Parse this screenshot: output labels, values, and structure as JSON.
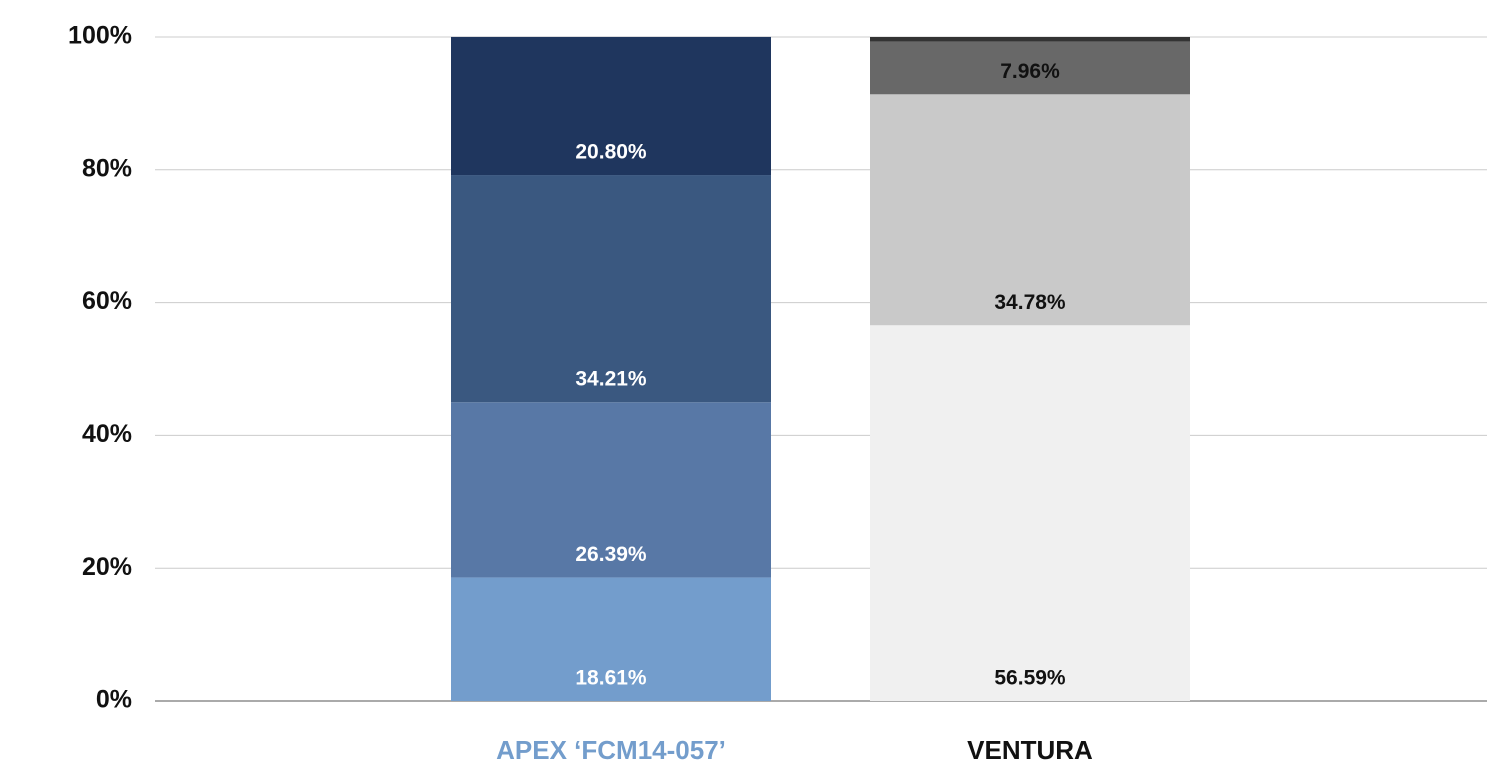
{
  "chart_data": {
    "type": "stacked-bar",
    "categories": [
      "APEX ‘FCM14-057’",
      "VENTURA"
    ],
    "category_colors": [
      "#739dcc",
      "#111111"
    ],
    "stacks": [
      {
        "values": [
          18.61,
          26.39,
          34.21,
          20.8
        ],
        "value_labels": [
          "18.61%",
          "26.39%",
          "34.21%",
          "20.80%"
        ],
        "colors": [
          "#739dcc",
          "#5878a6",
          "#3a5880",
          "#1f365e"
        ],
        "label_color": "#ffffff"
      },
      {
        "values": [
          56.59,
          34.78,
          7.96,
          0.67
        ],
        "value_labels": [
          "56.59%",
          "34.78%",
          "7.96%",
          null
        ],
        "colors": [
          "#f0f0f0",
          "#c9c9c9",
          "#686868",
          "#333333"
        ],
        "label_color": "#111111"
      }
    ],
    "ylim": [
      0,
      100
    ],
    "yticks": [
      {
        "value": 0,
        "label": "0%"
      },
      {
        "value": 20,
        "label": "20%"
      },
      {
        "value": 40,
        "label": "40%"
      },
      {
        "value": 60,
        "label": "60%"
      },
      {
        "value": 80,
        "label": "80%"
      },
      {
        "value": 100,
        "label": "100%"
      }
    ],
    "grid": true
  }
}
